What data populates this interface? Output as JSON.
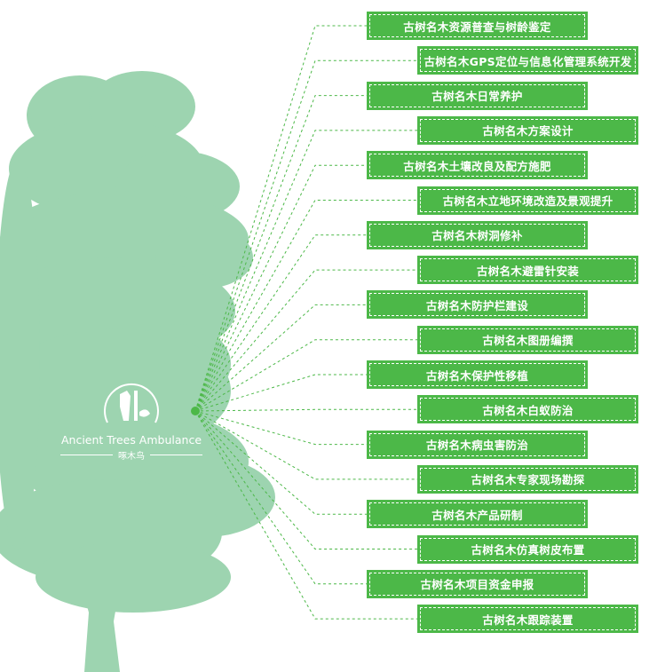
{
  "colors": {
    "tree": "#9dd4b0",
    "box": "#4cb848",
    "line": "#4cb848"
  },
  "logo": {
    "name_en": "Ancient Trees Ambulance",
    "name_cn": "啄木鸟"
  },
  "items": [
    {
      "label": "古树名木资源普查与树龄鉴定",
      "column": "left"
    },
    {
      "label": "古树名木GPS定位与信息化管理系统开发",
      "column": "right"
    },
    {
      "label": "古树名木日常养护",
      "column": "left"
    },
    {
      "label": "古树名木方案设计",
      "column": "right"
    },
    {
      "label": "古树名木土壤改良及配方施肥",
      "column": "left"
    },
    {
      "label": "古树名木立地环境改造及景观提升",
      "column": "right"
    },
    {
      "label": "古树名木树洞修补",
      "column": "left"
    },
    {
      "label": "古树名木避雷针安装",
      "column": "right"
    },
    {
      "label": "古树名木防护栏建设",
      "column": "left"
    },
    {
      "label": "古树名木图册编撰",
      "column": "right"
    },
    {
      "label": "古树名木保护性移植",
      "column": "left"
    },
    {
      "label": "古树名木白蚁防治",
      "column": "right"
    },
    {
      "label": "古树名木病虫害防治",
      "column": "left"
    },
    {
      "label": "古树名木专家现场勘探",
      "column": "right"
    },
    {
      "label": "古树名木产品研制",
      "column": "left"
    },
    {
      "label": "古树名木仿真树皮布置",
      "column": "right"
    },
    {
      "label": "古树名木项目资金申报",
      "column": "left"
    },
    {
      "label": "古树名木跟踪装置",
      "column": "right"
    }
  ]
}
